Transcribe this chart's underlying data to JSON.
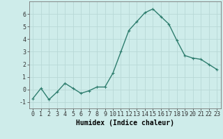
{
  "x": [
    0,
    1,
    2,
    3,
    4,
    5,
    6,
    7,
    8,
    9,
    10,
    11,
    12,
    13,
    14,
    15,
    16,
    17,
    18,
    19,
    20,
    21,
    22,
    23
  ],
  "y": [
    -0.7,
    0.1,
    -0.8,
    -0.2,
    0.5,
    0.1,
    -0.3,
    -0.1,
    0.2,
    0.2,
    1.3,
    3.0,
    4.7,
    5.4,
    6.1,
    6.4,
    5.8,
    5.2,
    3.9,
    2.7,
    2.5,
    2.4,
    2.0,
    1.6
  ],
  "line_color": "#2e7d6e",
  "marker": "+",
  "marker_size": 3.5,
  "line_width": 1.0,
  "xlabel": "Humidex (Indice chaleur)",
  "xlim": [
    -0.5,
    23.5
  ],
  "ylim": [
    -1.5,
    7.0
  ],
  "yticks": [
    -1,
    0,
    1,
    2,
    3,
    4,
    5,
    6
  ],
  "xticks": [
    0,
    1,
    2,
    3,
    4,
    5,
    6,
    7,
    8,
    9,
    10,
    11,
    12,
    13,
    14,
    15,
    16,
    17,
    18,
    19,
    20,
    21,
    22,
    23
  ],
  "xtick_labels": [
    "0",
    "1",
    "2",
    "3",
    "4",
    "5",
    "6",
    "7",
    "8",
    "9",
    "10",
    "11",
    "12",
    "13",
    "14",
    "15",
    "16",
    "17",
    "18",
    "19",
    "20",
    "21",
    "22",
    "23"
  ],
  "background_color": "#ceecea",
  "grid_color": "#b8d8d6",
  "tick_fontsize": 6,
  "xlabel_fontsize": 7
}
